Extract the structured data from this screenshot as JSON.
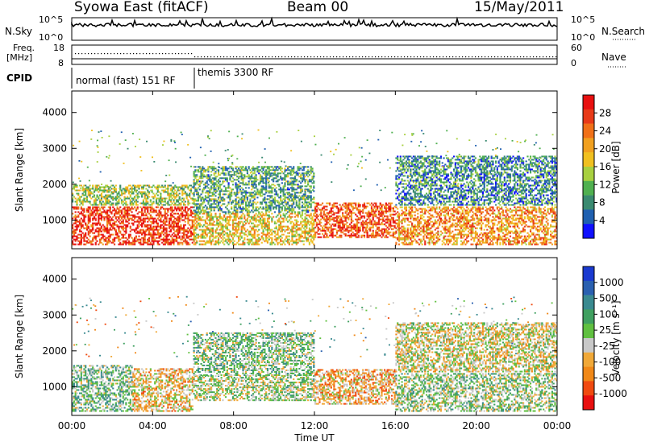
{
  "header": {
    "title": "Syowa East (fitACF)",
    "beam": "Beam 00",
    "date": "15/May/2011"
  },
  "nsky_panel": {
    "left_label": "N.Sky",
    "ticks": [
      "10^5",
      "10^0"
    ],
    "right_ticks": [
      "10^5",
      "10^0"
    ],
    "right_label": "N.Search"
  },
  "freq_panel": {
    "left_label_line1": "Freq.",
    "left_label_line2": "[MHz]",
    "ticks": [
      "18",
      "8"
    ],
    "right_ticks": [
      "60",
      "0"
    ],
    "right_label": "Nave"
  },
  "cpid_panel": {
    "label": "CPID",
    "modes": [
      "normal (fast) 151 RF",
      "themis 3300 RF"
    ]
  },
  "x_axis": {
    "label": "Time UT",
    "ticks": [
      "00:00",
      "04:00",
      "08:00",
      "12:00",
      "16:00",
      "20:00",
      "00:00"
    ]
  },
  "colors": {
    "power": [
      "#1010ff",
      "#2060b0",
      "#3a8a70",
      "#50b050",
      "#a8d040",
      "#f0c020",
      "#f0a020",
      "#f07018",
      "#e83a18",
      "#e81010"
    ],
    "velocity": [
      "#e81010",
      "#f04a10",
      "#f08818",
      "#f0a838",
      "#c8c8c8",
      "#60c040",
      "#40a060",
      "#3a8a90",
      "#2a60b0",
      "#1a3ad0"
    ]
  },
  "chart_data": [
    {
      "type": "heatmap",
      "name": "power",
      "ylabel": "Slant Range [km]",
      "yticks": [
        "1000",
        "2000",
        "3000",
        "4000"
      ],
      "ylim": [
        200,
        4600
      ],
      "xlim": [
        0,
        24
      ],
      "colorbar": {
        "label": "Power [dB]",
        "ticks": [
          "28",
          "24",
          "20",
          "16",
          "12",
          "8",
          "4"
        ],
        "range": [
          0,
          32
        ]
      },
      "regions": [
        {
          "t0": 0,
          "t1": 6,
          "r0": 300,
          "r1": 1400,
          "v": 28
        },
        {
          "t0": 0,
          "t1": 6,
          "r0": 1400,
          "r1": 2000,
          "v": 14
        },
        {
          "t0": 6,
          "t1": 12,
          "r0": 300,
          "r1": 1200,
          "v": 18
        },
        {
          "t0": 6,
          "t1": 12,
          "r0": 1200,
          "r1": 2500,
          "v": 10
        },
        {
          "t0": 12,
          "t1": 16,
          "r0": 500,
          "r1": 1500,
          "v": 26
        },
        {
          "t0": 16,
          "t1": 24,
          "r0": 300,
          "r1": 1400,
          "v": 22
        },
        {
          "t0": 16,
          "t1": 24,
          "r0": 1400,
          "r1": 2800,
          "v": 8
        }
      ]
    },
    {
      "type": "heatmap",
      "name": "velocity",
      "ylabel": "Slant Range [km]",
      "yticks": [
        "1000",
        "2000",
        "3000",
        "4000"
      ],
      "ylim": [
        200,
        4600
      ],
      "xlim": [
        0,
        24
      ],
      "colorbar": {
        "label": "Velocity [m s⁻¹]",
        "ticks": [
          "1000",
          "500",
          "100",
          "25",
          "-25",
          "-100",
          "-500",
          "-1000"
        ],
        "range": [
          -1200,
          1200
        ]
      },
      "regions": [
        {
          "t0": 0,
          "t1": 3,
          "r0": 300,
          "r1": 1600,
          "v": 200
        },
        {
          "t0": 3,
          "t1": 6,
          "r0": 300,
          "r1": 1500,
          "v": -300
        },
        {
          "t0": 6,
          "t1": 12,
          "r0": 600,
          "r1": 1300,
          "v": 0
        },
        {
          "t0": 6,
          "t1": 12,
          "r0": 1300,
          "r1": 2500,
          "v": 150
        },
        {
          "t0": 12,
          "t1": 16,
          "r0": 500,
          "r1": 1500,
          "v": -400
        },
        {
          "t0": 16,
          "t1": 24,
          "r0": 300,
          "r1": 1400,
          "v": 80
        },
        {
          "t0": 16,
          "t1": 24,
          "r0": 1400,
          "r1": 2800,
          "v": -150
        }
      ]
    }
  ]
}
